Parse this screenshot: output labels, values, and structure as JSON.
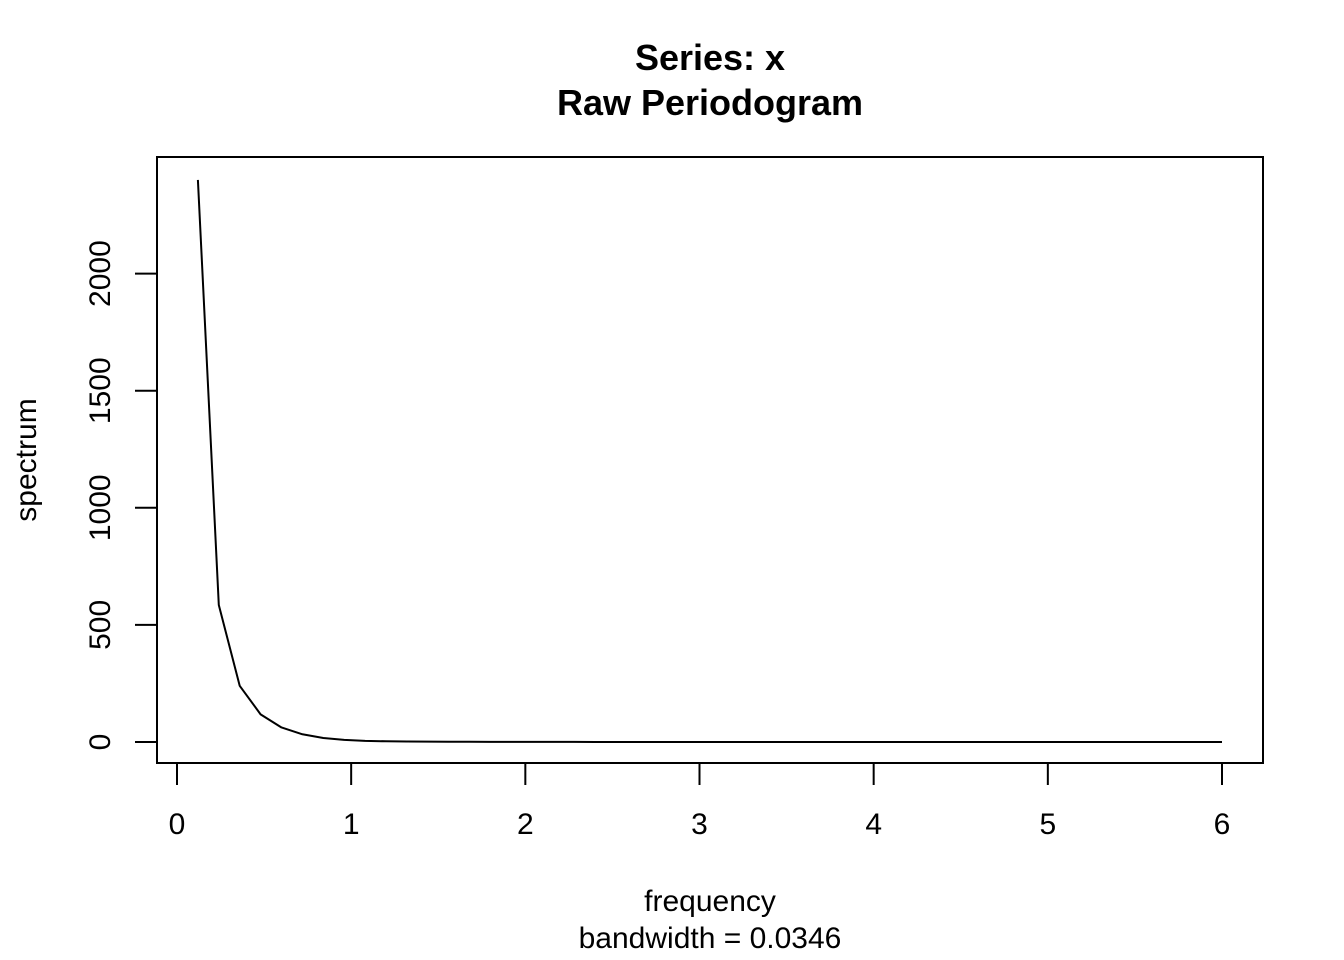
{
  "chart_data": {
    "type": "line",
    "title": "Series: x",
    "subtitle": "Raw Periodogram",
    "xlabel": "frequency",
    "xlabel_sub": "bandwidth = 0.0346",
    "ylabel": "spectrum",
    "xlim": [
      0,
      6
    ],
    "ylim": [
      0,
      2400
    ],
    "x_ticks": [
      0,
      1,
      2,
      3,
      4,
      5,
      6
    ],
    "x_tick_labels": [
      "0",
      "1",
      "2",
      "3",
      "4",
      "5",
      "6"
    ],
    "y_ticks": [
      0,
      500,
      1000,
      1500,
      2000
    ],
    "y_tick_labels": [
      "0",
      "500",
      "1000",
      "1500",
      "2000"
    ],
    "grid": false,
    "legend": "none",
    "line_color": "#000000",
    "series": [
      {
        "x": [
          0.12,
          0.24,
          0.36,
          0.48,
          0.6,
          0.72,
          0.84,
          0.96,
          1.08,
          1.2,
          1.32,
          1.44,
          1.56,
          1.68,
          1.8,
          1.92,
          2.04,
          2.16,
          2.28,
          2.4,
          2.52,
          2.64,
          2.76,
          2.88,
          3.0,
          3.12,
          3.24,
          3.36,
          3.48,
          3.6,
          3.72,
          3.84,
          3.96,
          4.08,
          4.2,
          4.32,
          4.44,
          4.56,
          4.68,
          4.8,
          4.92,
          5.04,
          5.16,
          5.28,
          5.4,
          5.52,
          5.64,
          5.76,
          5.88,
          6.0
        ],
        "y": [
          2400,
          585,
          240,
          118,
          62,
          33,
          17,
          9,
          5,
          3,
          2,
          1.5,
          1,
          0.8,
          0.6,
          0.5,
          0.4,
          0.3,
          0.3,
          0.2,
          0.2,
          0.2,
          0.1,
          0.1,
          0.1,
          0.1,
          0.1,
          0.1,
          0.1,
          0.1,
          0.1,
          0.1,
          0.1,
          0.1,
          0.1,
          0.1,
          0.1,
          0.1,
          0.1,
          0.1,
          0.1,
          0.1,
          0.1,
          0.1,
          0.1,
          0.1,
          0.1,
          0.1,
          0.1,
          0.1
        ]
      }
    ]
  }
}
